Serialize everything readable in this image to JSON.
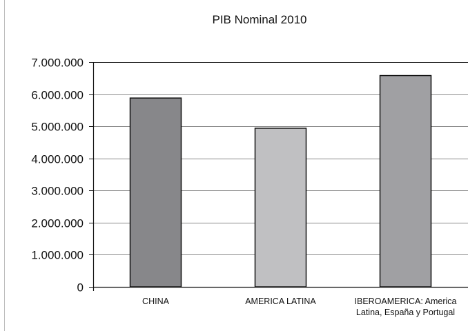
{
  "chart_data": {
    "type": "bar",
    "title": "PIB Nominal 2010",
    "xlabel": "",
    "ylabel": "",
    "categories": [
      [
        "CHINA"
      ],
      [
        "AMERICA LATINA"
      ],
      [
        "IBEROAMERICA: America",
        "Latina, España y Portugal"
      ]
    ],
    "values": [
      5880000,
      4940000,
      6580000
    ],
    "ylim": [
      0,
      7000000
    ],
    "yticks": [
      0,
      1000000,
      2000000,
      3000000,
      4000000,
      5000000,
      6000000,
      7000000
    ],
    "ytick_labels": [
      "0",
      "1.000.000",
      "2.000.000",
      "3.000.000",
      "4.000.000",
      "5.000.000",
      "6.000.000",
      "7.000.000"
    ],
    "grid": true,
    "legend": "none",
    "colors": {
      "bars": [
        "#87878a",
        "#c0c0c2",
        "#a0a0a3"
      ],
      "bar_stroke": "#111111",
      "grid": "#888888",
      "axis": "#111111"
    }
  }
}
